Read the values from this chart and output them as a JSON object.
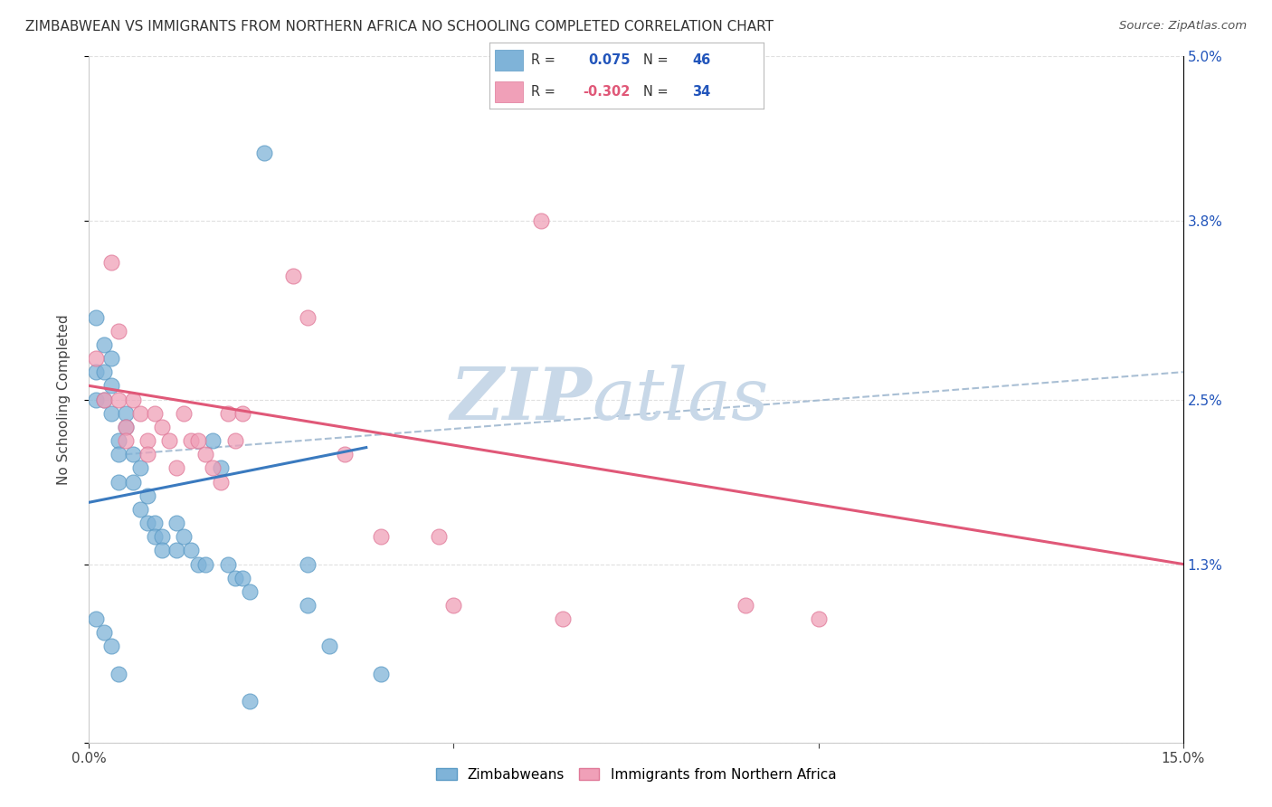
{
  "title": "ZIMBABWEAN VS IMMIGRANTS FROM NORTHERN AFRICA NO SCHOOLING COMPLETED CORRELATION CHART",
  "source": "Source: ZipAtlas.com",
  "ylabel": "No Schooling Completed",
  "x_ticks": [
    0.0,
    0.05,
    0.1,
    0.15
  ],
  "x_tick_labels": [
    "0.0%",
    "",
    "",
    "15.0%"
  ],
  "y_ticks": [
    0.0,
    0.013,
    0.025,
    0.038,
    0.05
  ],
  "y_tick_labels_right": [
    "",
    "1.3%",
    "2.5%",
    "3.8%",
    "5.0%"
  ],
  "xlim": [
    0.0,
    0.15
  ],
  "ylim": [
    0.0,
    0.05
  ],
  "blue_scatter": [
    [
      0.001,
      0.031
    ],
    [
      0.001,
      0.027
    ],
    [
      0.001,
      0.025
    ],
    [
      0.002,
      0.029
    ],
    [
      0.002,
      0.027
    ],
    [
      0.002,
      0.025
    ],
    [
      0.003,
      0.028
    ],
    [
      0.003,
      0.026
    ],
    [
      0.003,
      0.024
    ],
    [
      0.004,
      0.022
    ],
    [
      0.004,
      0.021
    ],
    [
      0.004,
      0.019
    ],
    [
      0.005,
      0.024
    ],
    [
      0.005,
      0.023
    ],
    [
      0.006,
      0.021
    ],
    [
      0.006,
      0.019
    ],
    [
      0.007,
      0.02
    ],
    [
      0.007,
      0.017
    ],
    [
      0.008,
      0.018
    ],
    [
      0.008,
      0.016
    ],
    [
      0.009,
      0.016
    ],
    [
      0.009,
      0.015
    ],
    [
      0.01,
      0.015
    ],
    [
      0.01,
      0.014
    ],
    [
      0.012,
      0.016
    ],
    [
      0.012,
      0.014
    ],
    [
      0.013,
      0.015
    ],
    [
      0.014,
      0.014
    ],
    [
      0.015,
      0.013
    ],
    [
      0.016,
      0.013
    ],
    [
      0.017,
      0.022
    ],
    [
      0.018,
      0.02
    ],
    [
      0.019,
      0.013
    ],
    [
      0.02,
      0.012
    ],
    [
      0.021,
      0.012
    ],
    [
      0.022,
      0.011
    ],
    [
      0.024,
      0.043
    ],
    [
      0.03,
      0.013
    ],
    [
      0.03,
      0.01
    ],
    [
      0.033,
      0.007
    ],
    [
      0.04,
      0.005
    ],
    [
      0.022,
      0.003
    ],
    [
      0.001,
      0.009
    ],
    [
      0.002,
      0.008
    ],
    [
      0.003,
      0.007
    ],
    [
      0.004,
      0.005
    ]
  ],
  "pink_scatter": [
    [
      0.001,
      0.028
    ],
    [
      0.002,
      0.025
    ],
    [
      0.003,
      0.035
    ],
    [
      0.004,
      0.03
    ],
    [
      0.004,
      0.025
    ],
    [
      0.005,
      0.023
    ],
    [
      0.005,
      0.022
    ],
    [
      0.006,
      0.025
    ],
    [
      0.007,
      0.024
    ],
    [
      0.008,
      0.022
    ],
    [
      0.008,
      0.021
    ],
    [
      0.009,
      0.024
    ],
    [
      0.01,
      0.023
    ],
    [
      0.011,
      0.022
    ],
    [
      0.012,
      0.02
    ],
    [
      0.013,
      0.024
    ],
    [
      0.014,
      0.022
    ],
    [
      0.015,
      0.022
    ],
    [
      0.016,
      0.021
    ],
    [
      0.017,
      0.02
    ],
    [
      0.018,
      0.019
    ],
    [
      0.019,
      0.024
    ],
    [
      0.02,
      0.022
    ],
    [
      0.021,
      0.024
    ],
    [
      0.028,
      0.034
    ],
    [
      0.03,
      0.031
    ],
    [
      0.035,
      0.021
    ],
    [
      0.04,
      0.015
    ],
    [
      0.048,
      0.015
    ],
    [
      0.05,
      0.01
    ],
    [
      0.062,
      0.038
    ],
    [
      0.065,
      0.009
    ],
    [
      0.09,
      0.01
    ],
    [
      0.1,
      0.009
    ]
  ],
  "blue_line": {
    "x0": 0.0,
    "y0": 0.0175,
    "x1": 0.038,
    "y1": 0.0215
  },
  "pink_line": {
    "x0": 0.0,
    "y0": 0.026,
    "x1": 0.15,
    "y1": 0.013
  },
  "dashed_line": {
    "x0": 0.005,
    "y0": 0.021,
    "x1": 0.15,
    "y1": 0.027
  },
  "watermark_zip": "ZIP",
  "watermark_atlas": "atlas",
  "watermark_color": "#c8d8e8",
  "background_color": "#ffffff",
  "grid_color": "#dddddd",
  "blue_dot_color": "#7fb3d8",
  "blue_dot_edge": "#5a9ac5",
  "pink_dot_color": "#f0a0b8",
  "pink_dot_edge": "#e07898",
  "blue_line_color": "#3a7abf",
  "pink_line_color": "#e05878",
  "dashed_line_color": "#a0b8d0",
  "r_value_blue": "0.075",
  "r_value_pink": "-0.302",
  "n_value_blue": "46",
  "n_value_pink": "34"
}
